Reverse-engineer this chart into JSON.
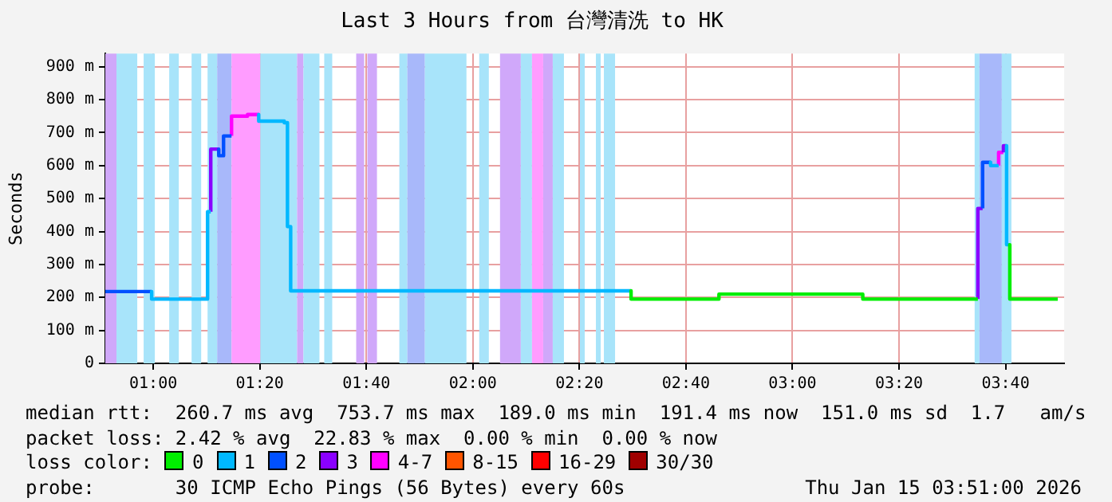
{
  "chart_data": {
    "type": "line",
    "title": "Last 3 Hours from 台灣清洗 to HK",
    "ylabel": "Seconds",
    "xlim": [
      0.85,
      3.85
    ],
    "xticks": [
      {
        "value": 1,
        "label": "01:00"
      },
      {
        "value": 1.3333,
        "label": "01:20"
      },
      {
        "value": 1.6667,
        "label": "01:40"
      },
      {
        "value": 2,
        "label": "02:00"
      },
      {
        "value": 2.3333,
        "label": "02:20"
      },
      {
        "value": 2.6667,
        "label": "02:40"
      },
      {
        "value": 3,
        "label": "03:00"
      },
      {
        "value": 3.3333,
        "label": "03:20"
      },
      {
        "value": 3.6667,
        "label": "03:40"
      }
    ],
    "ylim": [
      0,
      940
    ],
    "yticks": [
      0,
      {
        "value": 100,
        "label": "100 m"
      },
      {
        "value": 200,
        "label": "200 m"
      },
      {
        "value": 300,
        "label": "300 m"
      },
      {
        "value": 400,
        "label": "400 m"
      },
      {
        "value": 500,
        "label": "500 m"
      },
      {
        "value": 600,
        "label": "600 m"
      },
      {
        "value": 700,
        "label": "700 m"
      },
      {
        "value": 800,
        "label": "800 m"
      },
      {
        "value": 900,
        "label": "900 m"
      }
    ],
    "grid": true,
    "legend": "bottom",
    "marker": "none",
    "line_style": "solid",
    "series": [
      {
        "name": "0",
        "color": "#00ee00",
        "x": [
          2.495,
          2.495,
          2.77,
          2.77,
          3.22,
          3.22,
          3.58,
          null,
          3.68,
          3.68,
          3.83
        ],
        "values": [
          220,
          195,
          195,
          210,
          210,
          195,
          195,
          null,
          360,
          195,
          195
        ]
      },
      {
        "name": "1",
        "color": "#00b8ff",
        "x": [
          0.995,
          0.995,
          1.17,
          1.17,
          1.18,
          null,
          1.33,
          1.33,
          1.41,
          1.41,
          1.42,
          1.42,
          1.43,
          1.43,
          2.495,
          null,
          3.62,
          3.62,
          3.645,
          null,
          3.67,
          3.67,
          3.68
        ],
        "values": [
          218,
          195,
          195,
          460,
          460,
          null,
          755,
          735,
          735,
          730,
          730,
          415,
          415,
          220,
          220,
          null,
          610,
          600,
          600,
          null,
          660,
          360,
          360
        ]
      },
      {
        "name": "2",
        "color": "#0050ff",
        "x": [
          0.85,
          0.995,
          null,
          1.205,
          1.205,
          1.22,
          1.22,
          1.245,
          null,
          3.595,
          3.595,
          3.62
        ],
        "values": [
          218,
          218,
          null,
          650,
          630,
          630,
          690,
          690,
          null,
          470,
          610,
          610
        ]
      },
      {
        "name": "3",
        "color": "#8a00ff",
        "x": [
          1.18,
          1.18,
          1.205,
          null,
          3.58,
          3.58,
          3.595,
          null,
          3.66,
          3.66,
          3.67
        ],
        "values": [
          460,
          650,
          650,
          null,
          195,
          470,
          470,
          null,
          640,
          660,
          660
        ]
      },
      {
        "name": "4-7",
        "color": "#ff00ff",
        "x": [
          1.245,
          1.245,
          1.295,
          1.295,
          1.33,
          null,
          3.645,
          3.645,
          3.66
        ],
        "values": [
          690,
          750,
          750,
          755,
          755,
          null,
          600,
          640,
          640
        ]
      },
      {
        "name": "8-15",
        "color": "#ff5500",
        "values": [
          null
        ]
      },
      {
        "name": "16-29",
        "color": "#ff0000",
        "values": [
          null
        ]
      },
      {
        "name": "30/30",
        "color": "#a00000",
        "values": [
          null
        ]
      }
    ],
    "legend_title": "loss color:",
    "bands": [
      {
        "axis": "x",
        "from": 0.85,
        "to": 0.885,
        "color": "#d0a8fa"
      },
      {
        "axis": "x",
        "from": 0.885,
        "to": 0.95,
        "color": "#a8e4fa"
      },
      {
        "axis": "x",
        "from": 0.97,
        "to": 1.005,
        "color": "#a8e4fa"
      },
      {
        "axis": "x",
        "from": 1.05,
        "to": 1.08,
        "color": "#a8e4fa"
      },
      {
        "axis": "x",
        "from": 1.12,
        "to": 1.15,
        "color": "#a8e4fa"
      },
      {
        "axis": "x",
        "from": 1.17,
        "to": 1.2,
        "color": "#a8e4fa"
      },
      {
        "axis": "x",
        "from": 1.2,
        "to": 1.245,
        "color": "#a8b8fa"
      },
      {
        "axis": "x",
        "from": 1.245,
        "to": 1.335,
        "color": "#ff9cff"
      },
      {
        "axis": "x",
        "from": 1.335,
        "to": 1.45,
        "color": "#a8e4fa"
      },
      {
        "axis": "x",
        "from": 1.45,
        "to": 1.47,
        "color": "#d0a8fa"
      },
      {
        "axis": "x",
        "from": 1.47,
        "to": 1.52,
        "color": "#a8e4fa"
      },
      {
        "axis": "x",
        "from": 1.535,
        "to": 1.56,
        "color": "#a8e4fa"
      },
      {
        "axis": "x",
        "from": 1.635,
        "to": 1.66,
        "color": "#d0a8fa"
      },
      {
        "axis": "x",
        "from": 1.67,
        "to": 1.7,
        "color": "#d0a8fa"
      },
      {
        "axis": "x",
        "from": 1.77,
        "to": 1.795,
        "color": "#a8e4fa"
      },
      {
        "axis": "x",
        "from": 1.795,
        "to": 1.85,
        "color": "#a8b8fa"
      },
      {
        "axis": "x",
        "from": 1.85,
        "to": 1.98,
        "color": "#a8e4fa"
      },
      {
        "axis": "x",
        "from": 2.02,
        "to": 2.05,
        "color": "#a8e4fa"
      },
      {
        "axis": "x",
        "from": 2.085,
        "to": 2.15,
        "color": "#d0a8fa"
      },
      {
        "axis": "x",
        "from": 2.15,
        "to": 2.185,
        "color": "#a8e4fa"
      },
      {
        "axis": "x",
        "from": 2.185,
        "to": 2.22,
        "color": "#ff9cff"
      },
      {
        "axis": "x",
        "from": 2.22,
        "to": 2.25,
        "color": "#d0a8fa"
      },
      {
        "axis": "x",
        "from": 2.25,
        "to": 2.285,
        "color": "#a8e4fa"
      },
      {
        "axis": "x",
        "from": 2.335,
        "to": 2.35,
        "color": "#a8e4fa"
      },
      {
        "axis": "x",
        "from": 2.385,
        "to": 2.4,
        "color": "#a8e4fa"
      },
      {
        "axis": "x",
        "from": 2.41,
        "to": 2.445,
        "color": "#a8e4fa"
      },
      {
        "axis": "x",
        "from": 3.57,
        "to": 3.585,
        "color": "#a8e4fa"
      },
      {
        "axis": "x",
        "from": 3.585,
        "to": 3.655,
        "color": "#a8b8fa"
      },
      {
        "axis": "x",
        "from": 3.655,
        "to": 3.685,
        "color": "#a8e4fa"
      }
    ],
    "annotations": [
      "median rtt:  260.7 ms avg  753.7 ms max  189.0 ms min  191.4 ms now  151.0 ms sd  1.7   am/s",
      "packet loss: 2.42 % avg  22.83 % max  0.00 % min  0.00 % now",
      "probe:       30 ICMP Echo Pings (56 Bytes) every 60s",
      "Thu Jan 15 03:51:00 2026"
    ]
  }
}
